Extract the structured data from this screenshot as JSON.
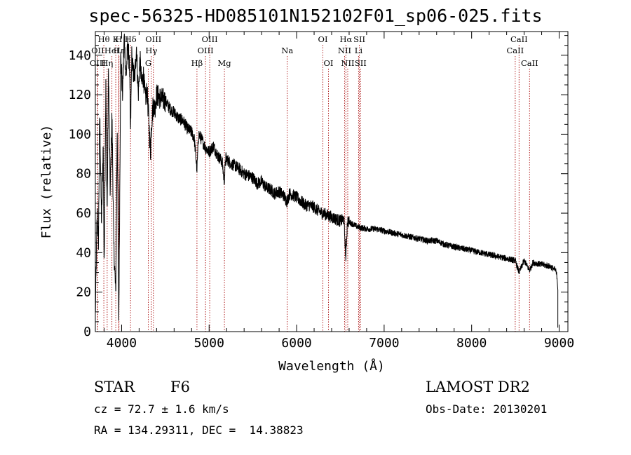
{
  "title": "spec-56325-HD085101N152102F01_sp06-025.fits",
  "info": {
    "class_label": "STAR",
    "subclass": "F6",
    "cz": "cz = 72.7 ± 1.6 km/s",
    "coords": "RA = 134.29311, DEC =  14.38823",
    "survey": "LAMOST DR2",
    "obs_date": "Obs-Date: 20130201"
  },
  "chart_data": {
    "type": "line",
    "title": "spec-56325-HD085101N152102F01_sp06-025.fits",
    "xlabel": "Wavelength (Å)",
    "ylabel": "Flux (relative)",
    "xlim": [
      3700,
      9100
    ],
    "ylim": [
      0,
      152
    ],
    "xticks": [
      4000,
      5000,
      6000,
      7000,
      8000,
      9000
    ],
    "yticks": [
      0,
      20,
      40,
      60,
      80,
      100,
      120,
      140
    ],
    "xtick_labels": [
      "4000",
      "5000",
      "6000",
      "7000",
      "8000",
      "9000"
    ],
    "ytick_labels": [
      "0",
      "20",
      "40",
      "60",
      "80",
      "100",
      "120",
      "140"
    ],
    "spectrum": {
      "x": [
        3700,
        3720,
        3735,
        3750,
        3770,
        3790,
        3800,
        3820,
        3835,
        3850,
        3870,
        3890,
        3910,
        3933,
        3950,
        3968,
        3990,
        4010,
        4030,
        4050,
        4070,
        4090,
        4102,
        4115,
        4130,
        4150,
        4170,
        4190,
        4210,
        4230,
        4250,
        4270,
        4290,
        4310,
        4330,
        4340,
        4360,
        4380,
        4400,
        4450,
        4500,
        4550,
        4600,
        4650,
        4700,
        4750,
        4800,
        4830,
        4861,
        4880,
        4920,
        4960,
        5000,
        5050,
        5100,
        5150,
        5172,
        5190,
        5250,
        5300,
        5350,
        5400,
        5450,
        5500,
        5550,
        5600,
        5650,
        5700,
        5750,
        5800,
        5850,
        5890,
        5920,
        6000,
        6050,
        6100,
        6150,
        6200,
        6250,
        6300,
        6350,
        6400,
        6450,
        6500,
        6540,
        6563,
        6580,
        6620,
        6700,
        6800,
        6900,
        7000,
        7100,
        7200,
        7300,
        7400,
        7500,
        7600,
        7700,
        7800,
        7900,
        8000,
        8100,
        8200,
        8300,
        8400,
        8498,
        8542,
        8600,
        8662,
        8700,
        8800,
        8900,
        8960,
        8975,
        8985
      ],
      "y": [
        8,
        60,
        45,
        112,
        55,
        95,
        30,
        125,
        60,
        133,
        70,
        110,
        45,
        18,
        105,
        5,
        140,
        120,
        150,
        128,
        145,
        135,
        100,
        140,
        132,
        128,
        145,
        120,
        138,
        125,
        130,
        118,
        122,
        108,
        90,
        104,
        115,
        113,
        120,
        118,
        117,
        113,
        111,
        108,
        107,
        103,
        101,
        98,
        82,
        100,
        97,
        93,
        91,
        94,
        89,
        86,
        76,
        88,
        85,
        84,
        82,
        80,
        79,
        78,
        75,
        76,
        73,
        72,
        70,
        71,
        69,
        66,
        70,
        68,
        66,
        64,
        64,
        63,
        61,
        60,
        59,
        58,
        57,
        56,
        57,
        37,
        56,
        55,
        53,
        52,
        52,
        51,
        50,
        49,
        48,
        47,
        46,
        46,
        44,
        43,
        42,
        41,
        40,
        39,
        38,
        37,
        36,
        30,
        36,
        31,
        35,
        34,
        33,
        31,
        28,
        22
      ],
      "points": 3000
    },
    "lines": [
      {
        "name": "Hθ",
        "wave": 3797,
        "row": 0
      },
      {
        "name": "OII",
        "wave": 3727,
        "row": 1
      },
      {
        "name": "OIII",
        "wave": 3727,
        "row": 2
      },
      {
        "name": "K",
        "wave": 3933,
        "row": 0
      },
      {
        "name": "HeI",
        "wave": 3889,
        "row": 1
      },
      {
        "name": "Hη",
        "wave": 3835,
        "row": 2
      },
      {
        "name": "H",
        "wave": 3968,
        "row": 0
      },
      {
        "name": "Hε",
        "wave": 3970,
        "row": 1
      },
      {
        "name": "Hδ",
        "wave": 4102,
        "row": 0
      },
      {
        "name": "OIII",
        "wave": 4363,
        "row": 0
      },
      {
        "name": "Hγ",
        "wave": 4340,
        "row": 1
      },
      {
        "name": "G",
        "wave": 4305,
        "row": 2
      },
      {
        "name": "Hβ",
        "wave": 4861,
        "row": 2
      },
      {
        "name": "OIII",
        "wave": 4959,
        "row": 1
      },
      {
        "name": "OIII",
        "wave": 5007,
        "row": 0
      },
      {
        "name": "Mg",
        "wave": 5175,
        "row": 2
      },
      {
        "name": "Na",
        "wave": 5893,
        "row": 1
      },
      {
        "name": "OI",
        "wave": 6300,
        "row": 0
      },
      {
        "name": "OI",
        "wave": 6364,
        "row": 2
      },
      {
        "name": "Hα",
        "wave": 6563,
        "row": 0
      },
      {
        "name": "NII",
        "wave": 6548,
        "row": 1
      },
      {
        "name": "NII",
        "wave": 6584,
        "row": 2
      },
      {
        "name": "SII",
        "wave": 6717,
        "row": 0
      },
      {
        "name": "Li",
        "wave": 6708,
        "row": 1
      },
      {
        "name": "SII",
        "wave": 6731,
        "row": 2
      },
      {
        "name": "CaII",
        "wave": 8542,
        "row": 0
      },
      {
        "name": "CaII",
        "wave": 8498,
        "row": 1
      },
      {
        "name": "CaII",
        "wave": 8662,
        "row": 2
      }
    ],
    "colors": {
      "spectrum": "#000000",
      "lines": "#b22222",
      "axis": "#000000"
    }
  }
}
